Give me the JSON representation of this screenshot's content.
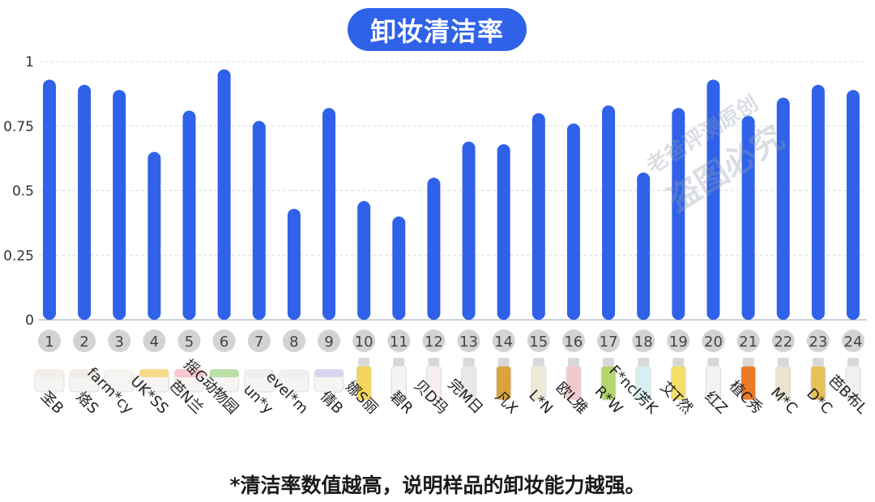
{
  "chart_data": {
    "type": "bar",
    "title": "卸妆清洁率",
    "footnote": "*清洁率数值越高，说明样品的卸妆能力越强。",
    "ylim": [
      0,
      1
    ],
    "yticks": [
      0,
      0.25,
      0.5,
      0.75,
      1
    ],
    "ytick_labels": [
      "0",
      "0.25",
      "0.5",
      "0.75",
      "1"
    ],
    "grid": true,
    "bar_color": "#2f62e8",
    "categories": [
      "1",
      "2",
      "3",
      "4",
      "5",
      "6",
      "7",
      "8",
      "9",
      "10",
      "11",
      "12",
      "13",
      "14",
      "15",
      "16",
      "17",
      "18",
      "19",
      "20",
      "21",
      "22",
      "23",
      "24"
    ],
    "product_names": [
      "圣B",
      "烙S",
      "farm*cy",
      "UK*SS",
      "芭N兰",
      "摇G动物园",
      "un*y",
      "evel*m",
      "倩B",
      "娜S丽",
      "碧R",
      "贝D玛",
      "完M日",
      "凡X",
      "L*N",
      "欧L雅",
      "R*W",
      "F*ncl芳K",
      "艾T然",
      "红Z",
      "植C秀",
      "M*C",
      "D*C",
      "芭B布L"
    ],
    "values": [
      0.93,
      0.91,
      0.89,
      0.65,
      0.81,
      0.97,
      0.77,
      0.43,
      0.82,
      0.46,
      0.4,
      0.55,
      0.69,
      0.68,
      0.8,
      0.76,
      0.83,
      0.57,
      0.82,
      0.93,
      0.79,
      0.86,
      0.91,
      0.89
    ]
  },
  "watermark": {
    "line1": "老爸评测原创",
    "line2": "盗图必究"
  }
}
